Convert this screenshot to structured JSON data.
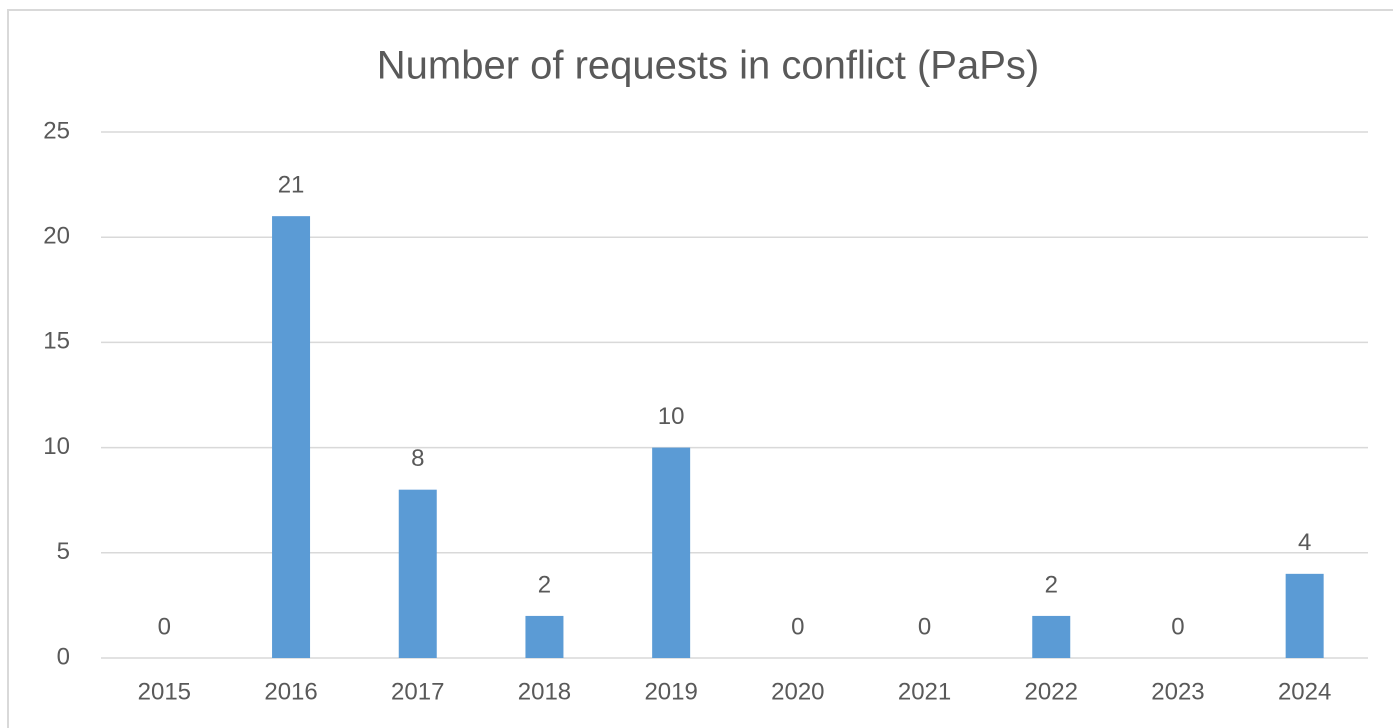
{
  "chart_data": {
    "type": "bar",
    "title": "Number of requests in conflict (PaPs)",
    "categories": [
      "2015",
      "2016",
      "2017",
      "2018",
      "2019",
      "2020",
      "2021",
      "2022",
      "2023",
      "2024"
    ],
    "values": [
      0,
      21,
      8,
      2,
      10,
      0,
      0,
      2,
      0,
      4
    ],
    "color": "#5b9bd5",
    "ylim": [
      0,
      25
    ],
    "yticks": [
      0,
      5,
      10,
      15,
      20,
      25
    ],
    "grid": true,
    "data_labels": true
  }
}
